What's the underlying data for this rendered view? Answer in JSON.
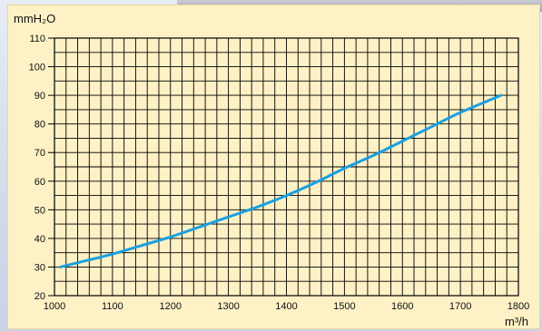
{
  "chart_data": {
    "type": "line",
    "title": "",
    "xlabel": "m³/h",
    "ylabel": "mmH₂O",
    "xlim": [
      1000,
      1800
    ],
    "ylim": [
      20,
      110
    ],
    "xticks": [
      1000,
      1100,
      1200,
      1300,
      1400,
      1500,
      1600,
      1700,
      1800
    ],
    "yticks": [
      20,
      30,
      40,
      50,
      60,
      70,
      80,
      90,
      100,
      110
    ],
    "grid": true,
    "series": [
      {
        "color": "#1aa0e0",
        "x": [
          1010,
          1050,
          1100,
          1150,
          1200,
          1250,
          1300,
          1350,
          1400,
          1450,
          1500,
          1550,
          1600,
          1650,
          1700,
          1770
        ],
        "y": [
          30,
          32,
          34.5,
          37.5,
          40.5,
          44,
          47.5,
          51,
          55,
          59.5,
          64.5,
          69,
          74,
          79,
          84,
          90
        ]
      }
    ]
  },
  "colors": {
    "panel": "#fef1c6",
    "grid": "#000000",
    "curve": "#1aa0e0"
  }
}
